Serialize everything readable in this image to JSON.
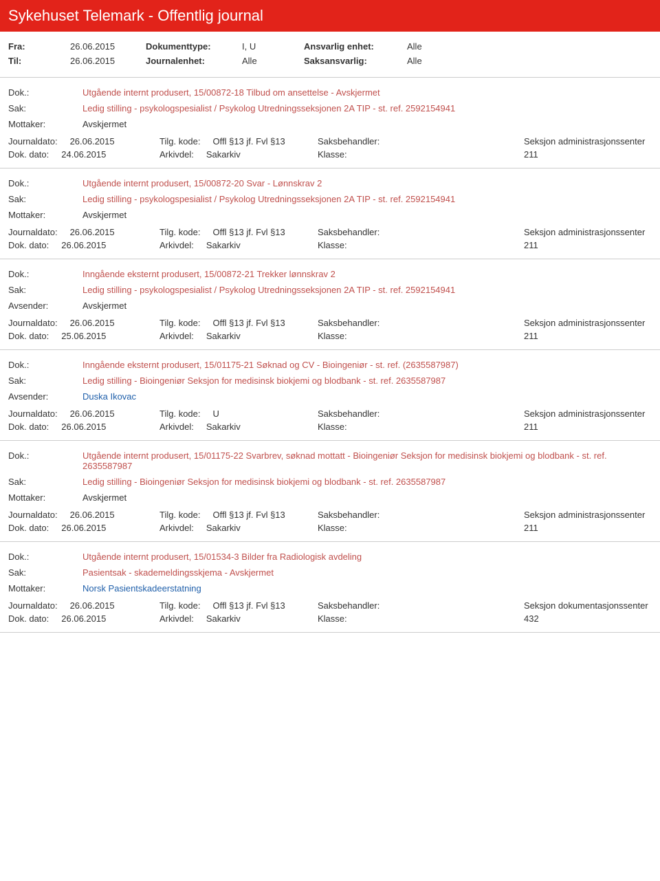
{
  "header": {
    "title": "Sykehuset Telemark - Offentlig journal"
  },
  "meta": {
    "fra_label": "Fra:",
    "fra": "26.06.2015",
    "til_label": "Til:",
    "til": "26.06.2015",
    "doktype_label": "Dokumenttype:",
    "doktype": "I, U",
    "journalenhet_label": "Journalenhet:",
    "journalenhet": "Alle",
    "ansvarlig_label": "Ansvarlig enhet:",
    "ansvarlig": "Alle",
    "saksansvarlig_label": "Saksansvarlig:",
    "saksansvarlig": "Alle"
  },
  "labels": {
    "dok": "Dok.:",
    "sak": "Sak:",
    "mottaker": "Mottaker:",
    "avsender": "Avsender:",
    "journaldato": "Journaldato:",
    "dokdato": "Dok. dato:",
    "tilgkode": "Tilg. kode:",
    "arkivdel": "Arkivdel:",
    "saksbehandler": "Saksbehandler:",
    "klasse": "Klasse:"
  },
  "entries": [
    {
      "dok": "Utgående internt produsert, 15/00872-18 Tilbud om ansettelse - Avskjermet",
      "sak": "Ledig stilling - psykologspesialist / Psykolog Utredningsseksjonen 2A TIP - st. ref. 2592154941",
      "party_label": "Mottaker:",
      "party": "Avskjermet",
      "party_blue": false,
      "journaldato": "26.06.2015",
      "tilgkode": "Offl §13 jf. Fvl §13",
      "saksbehandler": "Seksjon administrasjonssenter",
      "dokdato": "24.06.2015",
      "arkivdel": "Sakarkiv",
      "klasse": "211"
    },
    {
      "dok": "Utgående internt produsert, 15/00872-20 Svar - Lønnskrav 2",
      "sak": "Ledig stilling - psykologspesialist / Psykolog Utredningsseksjonen 2A TIP - st. ref. 2592154941",
      "party_label": "Mottaker:",
      "party": "Avskjermet",
      "party_blue": false,
      "journaldato": "26.06.2015",
      "tilgkode": "Offl §13 jf. Fvl §13",
      "saksbehandler": "Seksjon administrasjonssenter",
      "dokdato": "26.06.2015",
      "arkivdel": "Sakarkiv",
      "klasse": "211"
    },
    {
      "dok": "Inngående eksternt produsert, 15/00872-21 Trekker lønnskrav 2",
      "sak": "Ledig stilling - psykologspesialist / Psykolog Utredningsseksjonen 2A TIP - st. ref. 2592154941",
      "party_label": "Avsender:",
      "party": "Avskjermet",
      "party_blue": false,
      "journaldato": "26.06.2015",
      "tilgkode": "Offl §13 jf. Fvl §13",
      "saksbehandler": "Seksjon administrasjonssenter",
      "dokdato": "25.06.2015",
      "arkivdel": "Sakarkiv",
      "klasse": "211"
    },
    {
      "dok": "Inngående eksternt produsert, 15/01175-21 Søknad og CV - Bioingeniør - st. ref. (2635587987)",
      "sak": "Ledig stilling - Bioingeniør Seksjon for medisinsk biokjemi og blodbank - st. ref. 2635587987",
      "party_label": "Avsender:",
      "party": "Duska Ikovac",
      "party_blue": true,
      "journaldato": "26.06.2015",
      "tilgkode": "U",
      "saksbehandler": "Seksjon administrasjonssenter",
      "dokdato": "26.06.2015",
      "arkivdel": "Sakarkiv",
      "klasse": "211"
    },
    {
      "dok": "Utgående internt produsert, 15/01175-22 Svarbrev, søknad mottatt - Bioingeniør Seksjon for medisinsk biokjemi og blodbank - st. ref. 2635587987",
      "sak": "Ledig stilling - Bioingeniør Seksjon for medisinsk biokjemi og blodbank - st. ref. 2635587987",
      "party_label": "Mottaker:",
      "party": "Avskjermet",
      "party_blue": false,
      "journaldato": "26.06.2015",
      "tilgkode": "Offl §13 jf. Fvl §13",
      "saksbehandler": "Seksjon administrasjonssenter",
      "dokdato": "26.06.2015",
      "arkivdel": "Sakarkiv",
      "klasse": "211"
    },
    {
      "dok": "Utgående internt produsert, 15/01534-3 Bilder fra Radiologisk avdeling",
      "sak": "Pasientsak - skademeldingsskjema - Avskjermet",
      "party_label": "Mottaker:",
      "party": "Norsk Pasientskadeerstatning",
      "party_blue": true,
      "journaldato": "26.06.2015",
      "tilgkode": "Offl §13 jf. Fvl §13",
      "saksbehandler": "Seksjon dokumentasjonssenter",
      "dokdato": "26.06.2015",
      "arkivdel": "Sakarkiv",
      "klasse": "432"
    }
  ]
}
